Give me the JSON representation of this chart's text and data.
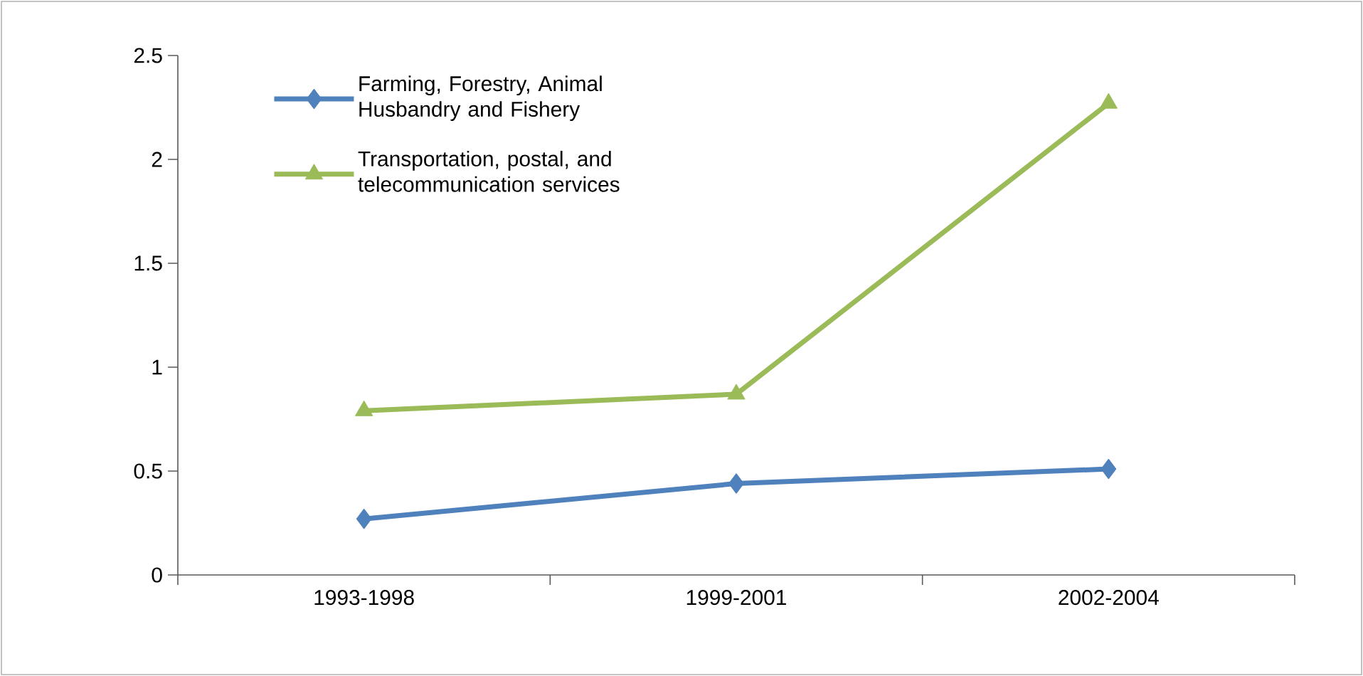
{
  "chart_data": {
    "type": "line",
    "categories": [
      "1993-1998",
      "1999-2001",
      "2002-2004"
    ],
    "series": [
      {
        "name": "Farming, Forestry, Animal Husbandry and Fishery",
        "color": "#4f81bd",
        "marker": "diamond",
        "values": [
          0.27,
          0.44,
          0.51
        ]
      },
      {
        "name": "Transportation, postal, and telecommunication services",
        "color": "#9bbb59",
        "marker": "triangle",
        "values": [
          0.79,
          0.87,
          2.27
        ]
      }
    ],
    "ylim": [
      0,
      2.5
    ],
    "yticks": [
      0,
      0.5,
      1,
      1.5,
      2,
      2.5
    ],
    "grid": false,
    "legend": "top left"
  }
}
